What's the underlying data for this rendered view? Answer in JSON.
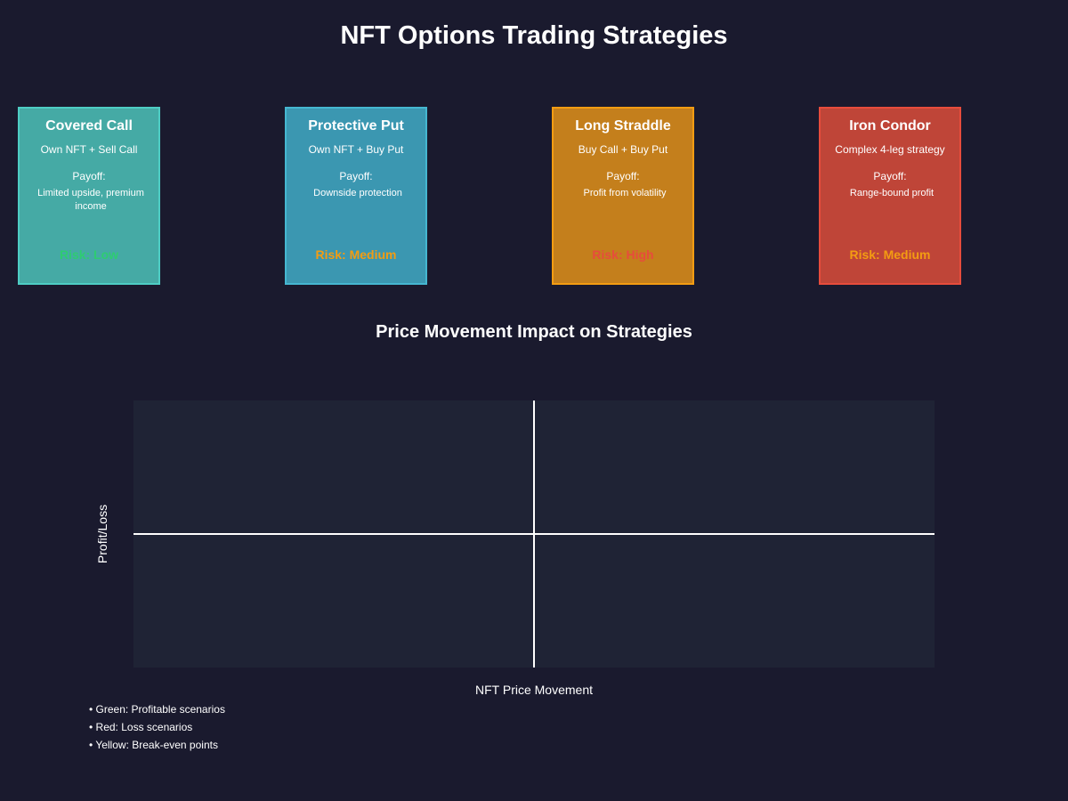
{
  "title": "NFT Options Trading Strategies",
  "strategies": [
    {
      "name": "Covered Call",
      "setup": "Own NFT + Sell Call",
      "payoff_label": "Payoff:",
      "payoff": "Limited upside, premium income",
      "risk": "Risk: Low",
      "fill_color": "#45aaa5",
      "border_color": "#4ecdc4",
      "risk_color": "#2ecc71"
    },
    {
      "name": "Protective Put",
      "setup": "Own NFT + Buy Put",
      "payoff_label": "Payoff:",
      "payoff": "Downside protection",
      "risk": "Risk: Medium",
      "fill_color": "#3b97b1",
      "border_color": "#45b7d1",
      "risk_color": "#f39c12"
    },
    {
      "name": "Long Straddle",
      "setup": "Buy Call + Buy Put",
      "payoff_label": "Payoff:",
      "payoff": "Profit from volatility",
      "risk": "Risk: High",
      "fill_color": "#c47f1c",
      "border_color": "#f39c12",
      "risk_color": "#e74c3c"
    },
    {
      "name": "Iron Condor",
      "setup": "Complex 4-leg strategy",
      "payoff_label": "Payoff:",
      "payoff": "Range-bound profit",
      "risk": "Risk: Medium",
      "fill_color": "#bf4538",
      "border_color": "#e74c3c",
      "risk_color": "#f39c12"
    }
  ],
  "chart": {
    "title": "Price Movement Impact on Strategies",
    "xlabel": "NFT Price Movement",
    "ylabel": "Profit/Loss",
    "legend": [
      "• Green: Profitable scenarios",
      "• Red: Loss scenarios",
      "• Yellow: Break-even points"
    ]
  },
  "colors": {
    "background": "#1a1a2e",
    "plot_area": "#1f2335",
    "text": "#ffffff"
  }
}
